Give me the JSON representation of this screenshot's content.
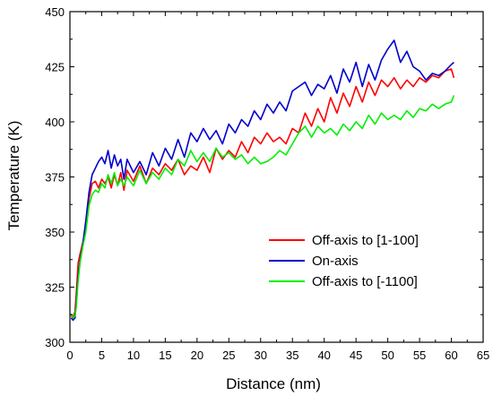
{
  "chart_data": {
    "type": "line",
    "title": "",
    "xlabel": "Distance (nm)",
    "ylabel": "Temperature (K)",
    "xlim": [
      0,
      65
    ],
    "ylim": [
      300,
      450
    ],
    "xticks": [
      0,
      5,
      10,
      15,
      20,
      25,
      30,
      35,
      40,
      45,
      50,
      55,
      60,
      65
    ],
    "yticks": [
      300,
      325,
      350,
      375,
      400,
      425,
      450
    ],
    "grid": false,
    "legend_position": "bottom-right",
    "series": [
      {
        "name": "Off-axis to [1-100]",
        "color": "#ff0000",
        "x": [
          0.2,
          0.5,
          0.8,
          1.0,
          1.3,
          1.6,
          2.0,
          2.5,
          3.0,
          3.5,
          4.0,
          4.5,
          5.0,
          5.5,
          6.0,
          6.5,
          7.0,
          7.5,
          8.0,
          8.5,
          9.0,
          10.0,
          11.0,
          12.0,
          13.0,
          14.0,
          15.0,
          16.0,
          17.0,
          18.0,
          19.0,
          20.0,
          21.0,
          22.0,
          23.0,
          24.0,
          25.0,
          26.0,
          27.0,
          28.0,
          29.0,
          30.0,
          31.0,
          32.0,
          33.0,
          34.0,
          35.0,
          36.0,
          37.0,
          38.0,
          39.0,
          40.0,
          41.0,
          42.0,
          43.0,
          44.0,
          45.0,
          46.0,
          47.0,
          48.0,
          49.0,
          50.0,
          51.0,
          52.0,
          53.0,
          54.0,
          55.0,
          56.0,
          57.0,
          58.0,
          59.0,
          60.0,
          60.4
        ],
        "y": [
          312,
          311,
          314,
          322,
          336,
          340,
          345,
          352,
          365,
          372,
          373,
          370,
          374,
          372,
          375,
          370,
          376,
          371,
          377,
          369,
          378,
          373,
          380,
          372,
          379,
          376,
          381,
          378,
          383,
          376,
          380,
          378,
          384,
          377,
          388,
          383,
          387,
          384,
          391,
          386,
          393,
          390,
          395,
          391,
          393,
          390,
          397,
          395,
          404,
          398,
          406,
          400,
          411,
          404,
          413,
          407,
          416,
          409,
          418,
          412,
          419,
          416,
          420,
          415,
          419,
          416,
          420,
          418,
          421,
          420,
          423,
          424,
          420
        ]
      },
      {
        "name": "On-axis",
        "color": "#0000cc",
        "x": [
          0.2,
          0.5,
          0.8,
          1.0,
          1.3,
          1.6,
          2.0,
          2.5,
          3.0,
          3.5,
          4.0,
          4.5,
          5.0,
          5.5,
          6.0,
          6.5,
          7.0,
          7.5,
          8.0,
          8.5,
          9.0,
          10.0,
          11.0,
          12.0,
          13.0,
          14.0,
          15.0,
          16.0,
          17.0,
          18.0,
          19.0,
          20.0,
          21.0,
          22.0,
          23.0,
          24.0,
          25.0,
          26.0,
          27.0,
          28.0,
          29.0,
          30.0,
          31.0,
          32.0,
          33.0,
          34.0,
          35.0,
          36.0,
          37.0,
          38.0,
          39.0,
          40.0,
          41.0,
          42.0,
          43.0,
          44.0,
          45.0,
          46.0,
          47.0,
          48.0,
          49.0,
          50.0,
          51.0,
          52.0,
          53.0,
          54.0,
          55.0,
          56.0,
          57.0,
          58.0,
          59.0,
          60.0,
          60.4
        ],
        "y": [
          311,
          310,
          311,
          318,
          330,
          337,
          344,
          355,
          368,
          376,
          379,
          382,
          384,
          381,
          387,
          379,
          385,
          380,
          383,
          374,
          383,
          377,
          382,
          376,
          386,
          380,
          388,
          383,
          392,
          384,
          395,
          391,
          397,
          392,
          396,
          390,
          399,
          395,
          401,
          398,
          405,
          401,
          408,
          404,
          409,
          405,
          414,
          416,
          418,
          412,
          417,
          415,
          421,
          413,
          424,
          418,
          427,
          416,
          426,
          419,
          428,
          433,
          437,
          427,
          432,
          425,
          423,
          419,
          422,
          421,
          423,
          426,
          427
        ]
      },
      {
        "name": "Off-axis to [-1100]",
        "color": "#00ee00",
        "x": [
          0.2,
          0.5,
          0.8,
          1.0,
          1.3,
          1.6,
          2.0,
          2.5,
          3.0,
          3.5,
          4.0,
          4.5,
          5.0,
          5.5,
          6.0,
          6.5,
          7.0,
          7.5,
          8.0,
          8.5,
          9.0,
          10.0,
          11.0,
          12.0,
          13.0,
          14.0,
          15.0,
          16.0,
          17.0,
          18.0,
          19.0,
          20.0,
          21.0,
          22.0,
          23.0,
          24.0,
          25.0,
          26.0,
          27.0,
          28.0,
          29.0,
          30.0,
          31.0,
          32.0,
          33.0,
          34.0,
          35.0,
          36.0,
          37.0,
          38.0,
          39.0,
          40.0,
          41.0,
          42.0,
          43.0,
          44.0,
          45.0,
          46.0,
          47.0,
          48.0,
          49.0,
          50.0,
          51.0,
          52.0,
          53.0,
          54.0,
          55.0,
          56.0,
          57.0,
          58.0,
          59.0,
          60.0,
          60.4
        ],
        "y": [
          313,
          311,
          312,
          316,
          328,
          336,
          343,
          350,
          362,
          367,
          369,
          368,
          372,
          370,
          376,
          372,
          377,
          371,
          374,
          371,
          375,
          371,
          378,
          372,
          377,
          374,
          379,
          376,
          383,
          380,
          387,
          382,
          386,
          382,
          388,
          384,
          386,
          383,
          385,
          381,
          384,
          381,
          382,
          384,
          387,
          385,
          390,
          395,
          398,
          393,
          398,
          395,
          397,
          394,
          399,
          396,
          400,
          397,
          403,
          399,
          404,
          401,
          403,
          401,
          405,
          402,
          406,
          405,
          408,
          406,
          408,
          409,
          412
        ]
      }
    ]
  }
}
